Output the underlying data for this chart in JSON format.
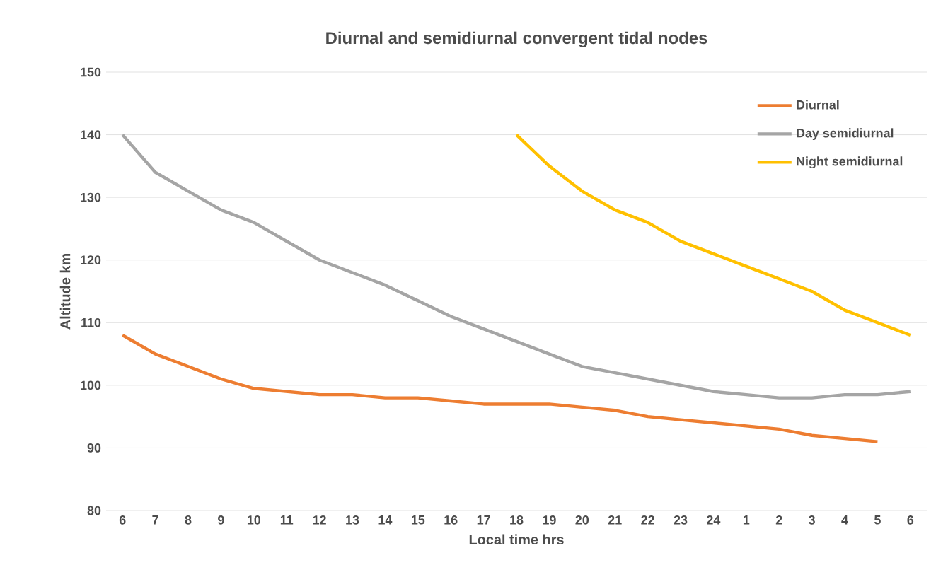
{
  "chart_data": {
    "type": "line",
    "title": "Diurnal and semidiurnal convergent tidal nodes",
    "xlabel": "Local time hrs",
    "ylabel": "Altitude km",
    "categories": [
      "6",
      "7",
      "8",
      "9",
      "10",
      "11",
      "12",
      "13",
      "14",
      "15",
      "16",
      "17",
      "18",
      "19",
      "20",
      "21",
      "22",
      "23",
      "24",
      "1",
      "2",
      "3",
      "4",
      "5",
      "6"
    ],
    "series": [
      {
        "name": "Diurnal",
        "color": "#ed7d31",
        "values": [
          108,
          105,
          103,
          101,
          99.5,
          99,
          98.5,
          98.5,
          98,
          98,
          97.5,
          97,
          97,
          97,
          96.5,
          96,
          95,
          94.5,
          94,
          93.5,
          93,
          92,
          91.5,
          91,
          null
        ]
      },
      {
        "name": "Day semidiurnal",
        "color": "#a5a5a5",
        "values": [
          140,
          134,
          131,
          128,
          126,
          123,
          120,
          118,
          116,
          113.5,
          111,
          109,
          107,
          105,
          103,
          102,
          101,
          100,
          99,
          98.5,
          98,
          98,
          98.5,
          98.5,
          99
        ]
      },
      {
        "name": "Night semidiurnal",
        "color": "#ffc000",
        "values": [
          null,
          null,
          null,
          null,
          null,
          null,
          null,
          null,
          null,
          null,
          null,
          null,
          140,
          135,
          131,
          128,
          126,
          123,
          121,
          119,
          117,
          115,
          112,
          110,
          108
        ]
      }
    ],
    "ylim": [
      80,
      150
    ],
    "yticks": [
      80,
      90,
      100,
      110,
      120,
      130,
      140,
      150
    ],
    "grid": "y",
    "legend": "top right",
    "marker": "none",
    "line_style": "solid"
  }
}
